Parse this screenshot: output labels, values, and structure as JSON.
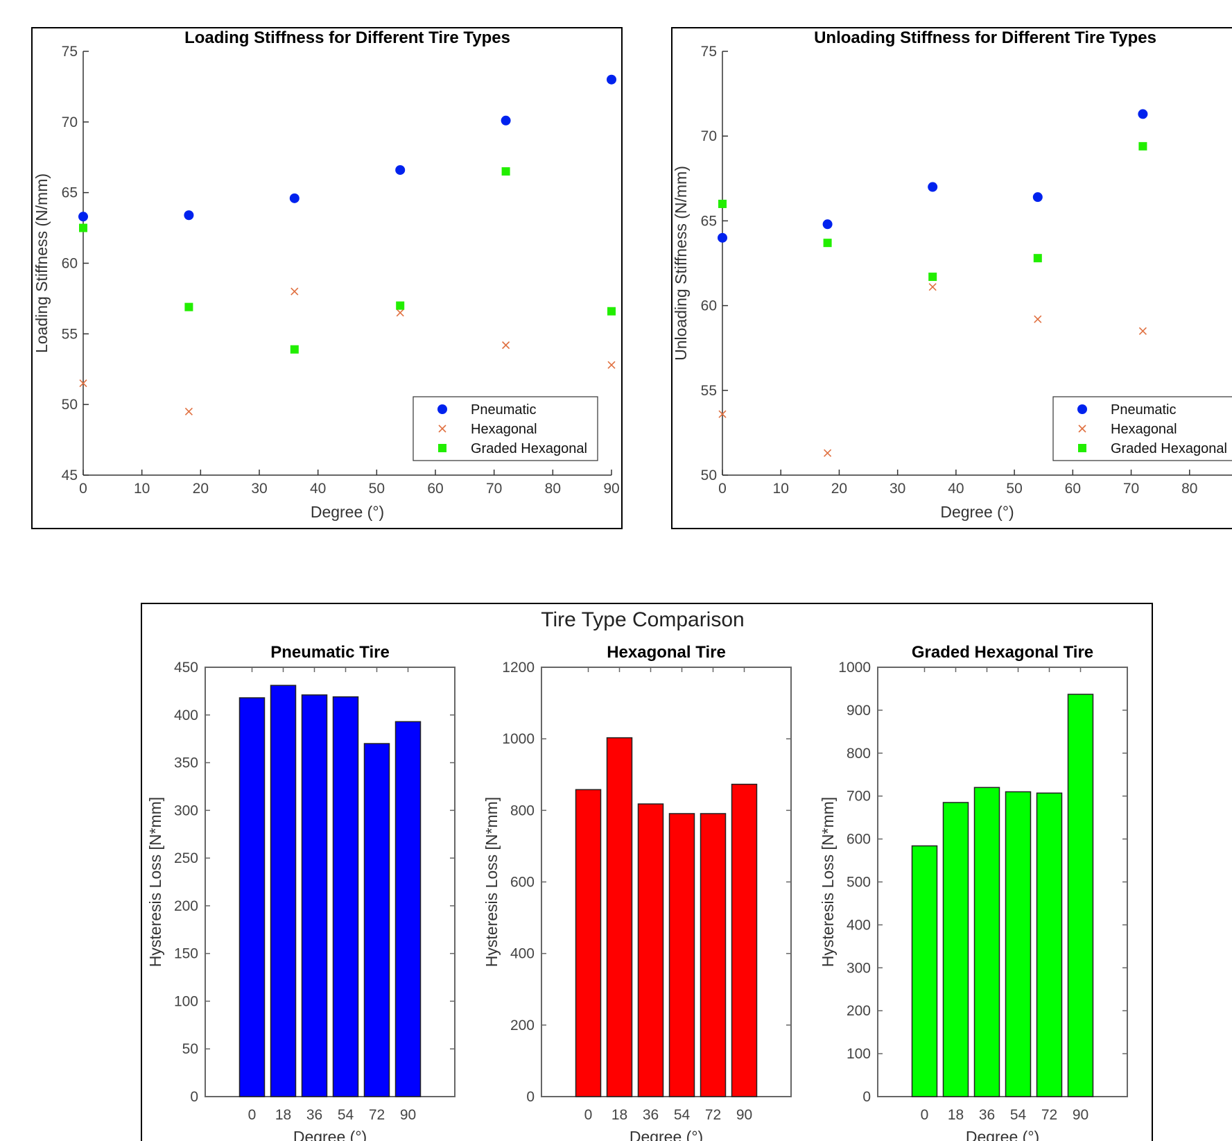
{
  "chart_data": [
    {
      "type": "scatter",
      "title": "Loading Stiffness for Different Tire Types",
      "xlabel": "Degree (°)",
      "ylabel": "Loading Stiffness (N/mm)",
      "xlim": [
        0,
        90
      ],
      "ylim": [
        45,
        75
      ],
      "xticks": [
        "0",
        "10",
        "20",
        "30",
        "40",
        "50",
        "60",
        "70",
        "80",
        "90"
      ],
      "yticks": [
        "45",
        "50",
        "55",
        "60",
        "65",
        "70",
        "75"
      ],
      "x": [
        0,
        18,
        36,
        54,
        72,
        90
      ],
      "legend_position": "bottom-right",
      "series": [
        {
          "name": "Pneumatic",
          "marker": "circle",
          "color": "#0022ee",
          "values": [
            63.3,
            63.4,
            64.6,
            66.6,
            70.1,
            73.0
          ]
        },
        {
          "name": "Hexagonal",
          "marker": "x",
          "color": "#e07040",
          "values": [
            51.5,
            49.5,
            58.0,
            56.5,
            54.2,
            52.8
          ]
        },
        {
          "name": "Graded Hexagonal",
          "marker": "square",
          "color": "#22ee00",
          "values": [
            62.5,
            56.9,
            53.9,
            57.0,
            66.5,
            56.6
          ]
        }
      ]
    },
    {
      "type": "scatter",
      "title": "Unloading Stiffness for Different Tire Types",
      "xlabel": "Degree (°)",
      "ylabel": "Unloading Stiffness (N/mm)",
      "xlim": [
        0,
        90
      ],
      "ylim": [
        50,
        75
      ],
      "xticks": [
        "0",
        "10",
        "20",
        "30",
        "40",
        "50",
        "60",
        "70",
        "80"
      ],
      "yticks": [
        "50",
        "55",
        "60",
        "65",
        "70",
        "75"
      ],
      "x": [
        0,
        18,
        36,
        54,
        72
      ],
      "legend_position": "bottom-right",
      "series": [
        {
          "name": "Pneumatic",
          "marker": "circle",
          "color": "#0022ee",
          "values": [
            64.0,
            64.8,
            67.0,
            66.4,
            71.3
          ]
        },
        {
          "name": "Hexagonal",
          "marker": "x",
          "color": "#e07040",
          "values": [
            53.6,
            51.3,
            61.1,
            59.2,
            58.5
          ]
        },
        {
          "name": "Graded Hexagonal",
          "marker": "square",
          "color": "#22ee00",
          "values": [
            66.0,
            63.7,
            61.7,
            62.8,
            69.4
          ]
        }
      ]
    },
    {
      "type": "bar",
      "title": "Pneumatic Tire",
      "xlabel": "Degree (°)",
      "ylabel": "Hysteresis Loss [N*mm]",
      "categories": [
        "0",
        "18",
        "36",
        "54",
        "72",
        "90"
      ],
      "values": [
        418,
        431,
        421,
        419,
        370,
        393
      ],
      "ylim": [
        0,
        450
      ],
      "yticks": [
        "0",
        "50",
        "100",
        "150",
        "200",
        "250",
        "300",
        "350",
        "400",
        "450"
      ],
      "color": "#0000ff"
    },
    {
      "type": "bar",
      "title": "Hexagonal Tire",
      "xlabel": "Degree (°)",
      "ylabel": "Hysteresis Loss [N*mm]",
      "categories": [
        "0",
        "18",
        "36",
        "54",
        "72",
        "90"
      ],
      "values": [
        858,
        1003,
        818,
        791,
        791,
        873
      ],
      "ylim": [
        0,
        1200
      ],
      "yticks": [
        "0",
        "200",
        "400",
        "600",
        "800",
        "1000",
        "1200"
      ],
      "color": "#ff0000"
    },
    {
      "type": "bar",
      "title": "Graded Hexagonal Tire",
      "xlabel": "Degree (°)",
      "ylabel": "Hysteresis Loss [N*mm]",
      "categories": [
        "0",
        "18",
        "36",
        "54",
        "72",
        "90"
      ],
      "values": [
        584,
        685,
        720,
        710,
        707,
        937
      ],
      "ylim": [
        0,
        1000
      ],
      "yticks": [
        "0",
        "100",
        "200",
        "300",
        "400",
        "500",
        "600",
        "700",
        "800",
        "900",
        "1000"
      ],
      "color": "#00ff00"
    }
  ],
  "comparison": {
    "suptitle": "Tire Type Comparison"
  }
}
